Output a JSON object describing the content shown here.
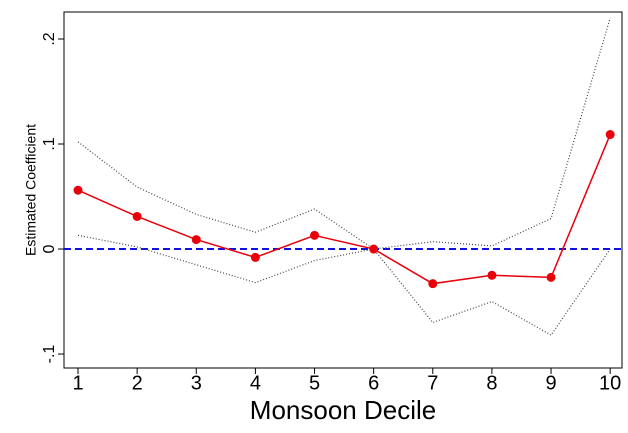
{
  "chart_data": {
    "type": "line",
    "x_label": "Monsoon Decile",
    "y_label": "Estimated Coefficient",
    "x": [
      1,
      2,
      3,
      4,
      5,
      6,
      7,
      8,
      9,
      10
    ],
    "series": [
      {
        "color": "#e8000b",
        "style": "solid",
        "markers": true,
        "values": [
          0.056,
          0.031,
          0.009,
          -0.008,
          0.013,
          0,
          -0.033,
          -0.025,
          -0.027,
          0.109
        ]
      },
      {
        "color": "#444444",
        "style": "dotted",
        "markers": false,
        "values": [
          0.102,
          0.059,
          0.033,
          0.016,
          0.038,
          0,
          0.007,
          0.003,
          0.029,
          0.22
        ]
      },
      {
        "color": "#444444",
        "style": "dotted",
        "markers": false,
        "values": [
          0.013,
          0.002,
          -0.015,
          -0.032,
          -0.011,
          0,
          -0.07,
          -0.05,
          -0.082,
          0
        ]
      }
    ],
    "reference_line": {
      "value": 0,
      "color": "#1010e0",
      "style": "dashed"
    },
    "xlim": [
      0.763,
      10.2
    ],
    "xticks": [
      1,
      2,
      3,
      4,
      5,
      6,
      7,
      8,
      9,
      10
    ],
    "ylim": [
      -0.1133,
      0.2257
    ],
    "yticks": [
      {
        "value": -0.1,
        "label": "-.1"
      },
      0,
      {
        "value": 0.1,
        "label": ".1"
      },
      {
        "value": 0.2,
        "label": ".2"
      }
    ]
  }
}
